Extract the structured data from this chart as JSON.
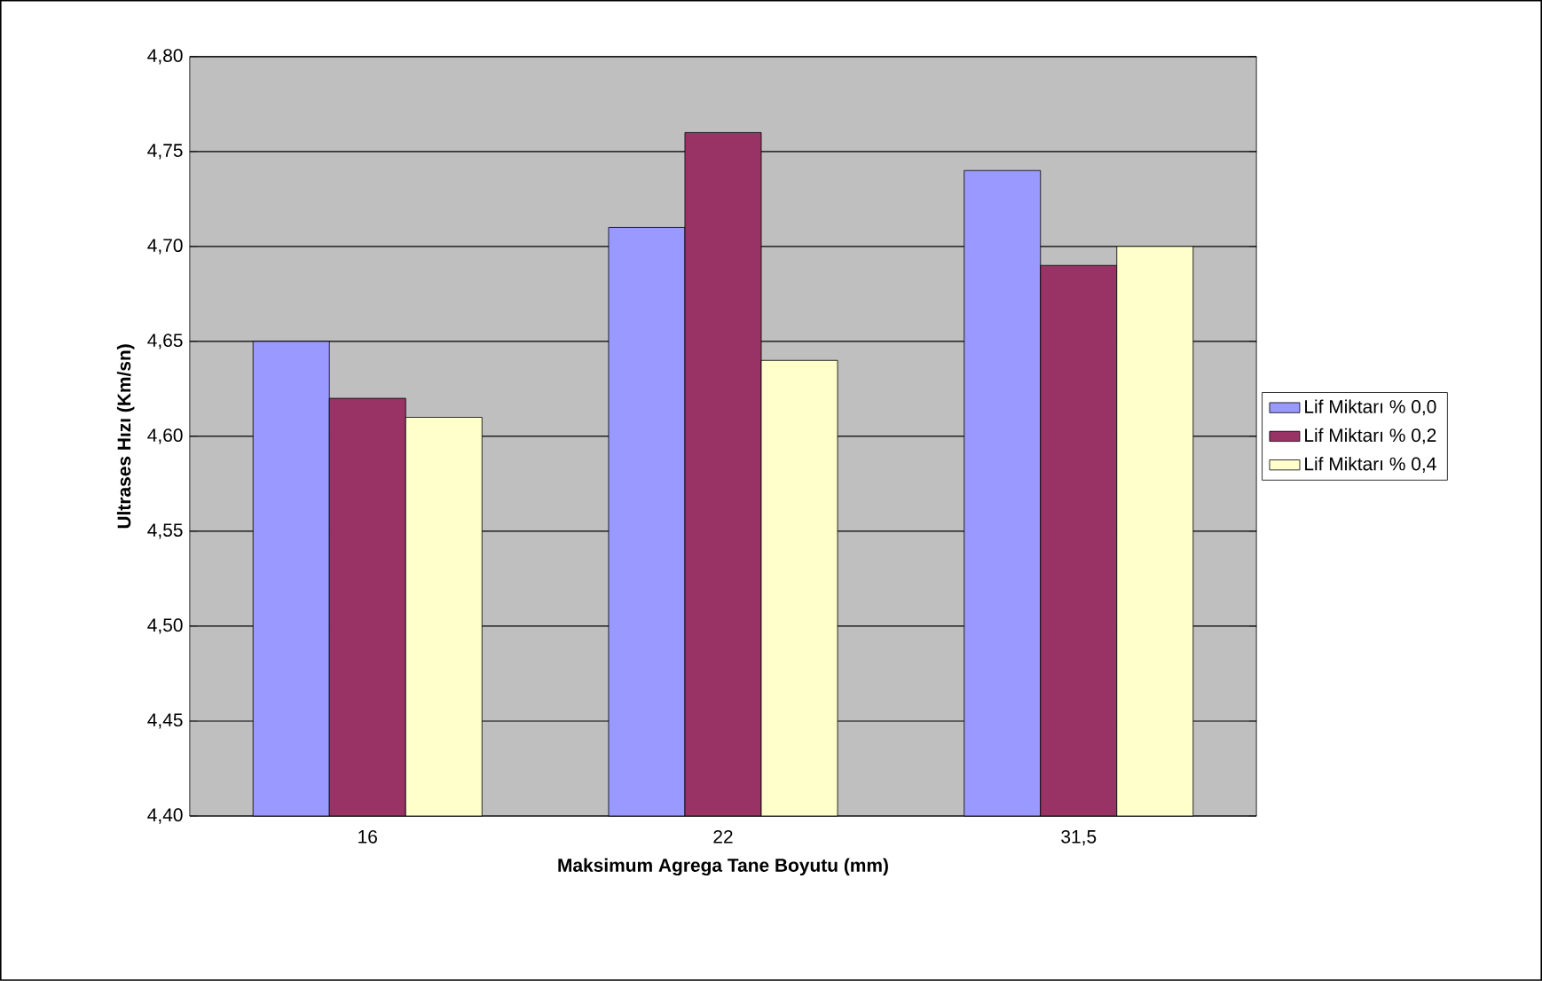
{
  "chart_data": {
    "type": "bar",
    "xlabel": "Maksimum Agrega Tane Boyutu (mm)",
    "ylabel": "Ultrases Hızı (Km/sn)",
    "categories": [
      "16",
      "22",
      "31,5"
    ],
    "series": [
      {
        "name": "Lif Miktarı % 0,0",
        "color": "#9999ff",
        "values": [
          4.65,
          4.71,
          4.74
        ]
      },
      {
        "name": "Lif Miktarı % 0,2",
        "color": "#993366",
        "values": [
          4.62,
          4.76,
          4.69
        ]
      },
      {
        "name": "Lif Miktarı % 0,4",
        "color": "#ffffcc",
        "values": [
          4.61,
          4.64,
          4.7
        ]
      }
    ],
    "ylim": [
      4.4,
      4.8
    ],
    "yticks": [
      {
        "value": 4.4,
        "label": "4,40"
      },
      {
        "value": 4.45,
        "label": "4,45"
      },
      {
        "value": 4.5,
        "label": "4,50"
      },
      {
        "value": 4.55,
        "label": "4,55"
      },
      {
        "value": 4.6,
        "label": "4,60"
      },
      {
        "value": 4.65,
        "label": "4,65"
      },
      {
        "value": 4.7,
        "label": "4,70"
      },
      {
        "value": 4.75,
        "label": "4,75"
      },
      {
        "value": 4.8,
        "label": "4,80"
      }
    ],
    "grid": "y",
    "legend": "right"
  }
}
